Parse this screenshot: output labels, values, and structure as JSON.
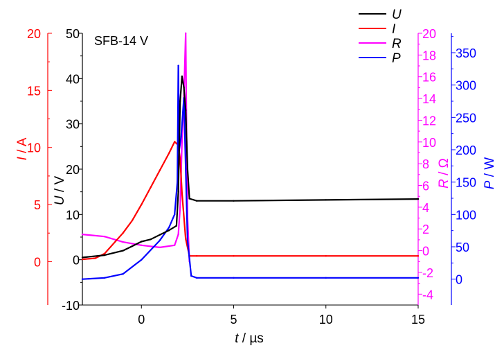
{
  "chart_data": {
    "type": "line",
    "annotation": "SFB-14 V",
    "xlabel": {
      "var": "t",
      "unit": " / µs"
    },
    "xlim": [
      -3.2,
      15
    ],
    "xticks": [
      "0",
      "5",
      "10",
      "15"
    ],
    "xtick_values": [
      0,
      5,
      10,
      15
    ],
    "axes": [
      {
        "id": "U",
        "label_var": "U",
        "label_unit": " / V",
        "color": "#000000",
        "ylim": [
          -10,
          50
        ],
        "ticks": [
          "-10",
          "0",
          "10",
          "20",
          "30",
          "40",
          "50"
        ],
        "tick_values": [
          -10,
          0,
          10,
          20,
          30,
          40,
          50
        ]
      },
      {
        "id": "I",
        "label_var": "I",
        "label_unit": " / A",
        "color": "#ff0000",
        "ylim": [
          -3.8,
          20
        ],
        "ticks": [
          "0",
          "5",
          "10",
          "15",
          "20"
        ],
        "tick_values": [
          0,
          5,
          10,
          15,
          20
        ]
      },
      {
        "id": "R",
        "label_var": "R",
        "label_unit": " / Ω",
        "color": "#ff00ff",
        "ylim": [
          -5,
          20
        ],
        "ticks": [
          "-4",
          "-2",
          "0",
          "2",
          "4",
          "6",
          "8",
          "10",
          "12",
          "14",
          "16",
          "18",
          "20"
        ],
        "tick_values": [
          -4,
          -2,
          0,
          2,
          4,
          6,
          8,
          10,
          12,
          14,
          16,
          18,
          20
        ]
      },
      {
        "id": "P",
        "label_var": "P",
        "label_unit": " / W",
        "color": "#0000ff",
        "ylim": [
          -40,
          380
        ],
        "ticks": [
          "0",
          "50",
          "100",
          "150",
          "200",
          "250",
          "300",
          "350"
        ],
        "tick_values": [
          0,
          50,
          100,
          150,
          200,
          250,
          300,
          350
        ]
      }
    ],
    "legend": {
      "position": "top-right",
      "entries": [
        "U",
        "I",
        "R",
        "P"
      ]
    },
    "series": [
      {
        "name": "U",
        "axis": "U",
        "color": "#000000",
        "x": [
          -3.2,
          -2,
          -1,
          -0.5,
          0,
          0.5,
          1,
          1.5,
          1.9,
          2.0,
          2.1,
          2.2,
          2.3,
          2.4,
          2.5,
          2.6,
          3,
          5,
          10,
          15
        ],
        "y": [
          0.5,
          1,
          2,
          3,
          4,
          4.5,
          5.5,
          6.5,
          7.5,
          15,
          35,
          40.5,
          38,
          33,
          20,
          13.5,
          13,
          13,
          13.2,
          13.4
        ]
      },
      {
        "name": "I",
        "axis": "I",
        "color": "#ff0000",
        "x": [
          -3.2,
          -2.5,
          -2,
          -1,
          -0.5,
          0,
          0.5,
          1,
          1.5,
          1.8,
          2.0,
          2.1,
          2.2,
          2.4,
          2.6,
          3,
          5,
          10,
          15
        ],
        "y": [
          0.2,
          0.3,
          0.7,
          2.5,
          3.6,
          5,
          6.5,
          8,
          9.5,
          10.5,
          10.2,
          9,
          6,
          2,
          0.5,
          0.5,
          0.5,
          0.5,
          0.5
        ]
      },
      {
        "name": "R",
        "axis": "R",
        "color": "#ff00ff",
        "x": [
          -3.2,
          -2,
          -1,
          0,
          1,
          1.8,
          2.0,
          2.1,
          2.2,
          2.3,
          2.4,
          2.45,
          2.5,
          2.6
        ],
        "y": [
          1.5,
          1.3,
          0.8,
          0.5,
          0.3,
          0.5,
          1.5,
          4,
          10,
          14,
          20,
          10,
          3,
          -1
        ]
      },
      {
        "name": "P",
        "axis": "P",
        "color": "#0000ff",
        "x": [
          -3.2,
          -2,
          -1,
          0,
          1,
          1.5,
          1.8,
          1.95,
          2.0,
          2.05,
          2.15,
          2.3,
          2.5,
          2.7,
          3,
          5,
          10,
          15
        ],
        "y": [
          0,
          2,
          8,
          30,
          60,
          80,
          100,
          150,
          330,
          200,
          220,
          280,
          60,
          5,
          2,
          2,
          2,
          2
        ]
      }
    ]
  }
}
